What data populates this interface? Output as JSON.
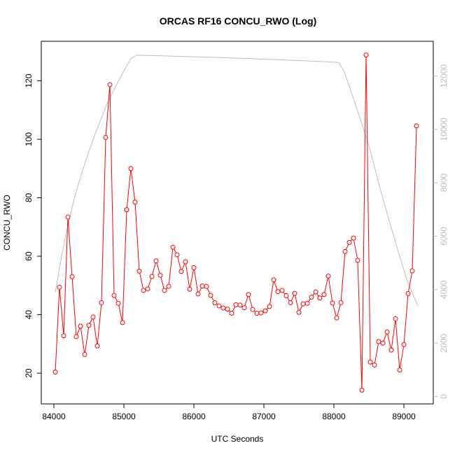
{
  "chart_data": {
    "type": "line",
    "title": "ORCAS RF16 CONCU_RWO (Log)",
    "xlabel": "UTC Seconds",
    "ylabel": "CONCU_RWO",
    "xlim": [
      83820,
      89420
    ],
    "ylim": [
      9.5,
      133.5
    ],
    "y2lim": [
      -280,
      13300
    ],
    "grid": false,
    "legend": "none",
    "xticks": [
      "84000",
      "85000",
      "86000",
      "87000",
      "88000",
      "89000"
    ],
    "yticks": [
      "20",
      "40",
      "60",
      "80",
      "100",
      "120"
    ],
    "y2ticks": [
      "0",
      "2000",
      "4000",
      "6000",
      "8000",
      "10000",
      "12000"
    ],
    "colors": {
      "primary": "#ff0000",
      "secondary": "#bebebe"
    },
    "series": [
      {
        "axis": "left",
        "style": "line+points",
        "x": [
          84020,
          84080,
          84140,
          84200,
          84260,
          84320,
          84380,
          84440,
          84500,
          84560,
          84620,
          84680,
          84740,
          84800,
          84860,
          84920,
          84980,
          85040,
          85100,
          85160,
          85220,
          85280,
          85340,
          85400,
          85460,
          85520,
          85580,
          85640,
          85700,
          85760,
          85820,
          85880,
          85940,
          86000,
          86060,
          86120,
          86180,
          86240,
          86300,
          86360,
          86420,
          86480,
          86540,
          86600,
          86660,
          86720,
          86780,
          86840,
          86900,
          86960,
          87020,
          87080,
          87140,
          87200,
          87260,
          87320,
          87380,
          87440,
          87500,
          87560,
          87620,
          87680,
          87740,
          87800,
          87860,
          87920,
          87980,
          88040,
          88100,
          88160,
          88220,
          88280,
          88340,
          88400,
          88460,
          88520,
          88580,
          88640,
          88700,
          88760,
          88820,
          88880,
          88940,
          89000,
          89060,
          89120,
          89180
        ],
        "y": [
          20.4,
          49.4,
          32.8,
          73.4,
          53.0,
          32.5,
          36.1,
          26.4,
          36.4,
          39.2,
          29.3,
          44.1,
          100.6,
          118.7,
          46.6,
          43.9,
          37.3,
          75.9,
          90.0,
          78.5,
          54.9,
          48.3,
          48.8,
          53.1,
          58.4,
          53.5,
          48.3,
          49.7,
          63.1,
          60.5,
          54.8,
          58.1,
          48.7,
          56.1,
          47.1,
          49.8,
          49.7,
          46.6,
          44.1,
          43.0,
          42.3,
          41.9,
          40.5,
          43.4,
          43.3,
          42.4,
          46.9,
          41.8,
          40.5,
          40.6,
          41.3,
          42.8,
          51.9,
          47.9,
          48.3,
          46.5,
          44.1,
          47.3,
          40.8,
          43.7,
          43.9,
          46.0,
          47.8,
          45.7,
          46.9,
          53.2,
          44.0,
          38.9,
          44.1,
          61.6,
          64.7,
          66.2,
          58.6,
          14.2,
          128.8,
          23.8,
          22.8,
          30.8,
          30.3,
          34.1,
          27.9,
          38.6,
          21.1,
          29.8,
          47.2,
          55.0,
          104.6
        ]
      },
      {
        "axis": "right",
        "style": "line",
        "x": [
          84020,
          84120,
          84200,
          84300,
          84450,
          84600,
          84750,
          84900,
          85000,
          85100,
          85180,
          85500,
          86000,
          86500,
          87000,
          87500,
          88000,
          88070,
          88150,
          88300,
          88500,
          88700,
          88900,
          89050,
          89200
        ],
        "y": [
          3900,
          5400,
          6400,
          7500,
          8800,
          9900,
          10900,
          11700,
          12200,
          12650,
          12780,
          12760,
          12720,
          12680,
          12630,
          12580,
          12520,
          12500,
          12150,
          11000,
          9400,
          7400,
          5600,
          4300,
          3400
        ]
      }
    ]
  }
}
